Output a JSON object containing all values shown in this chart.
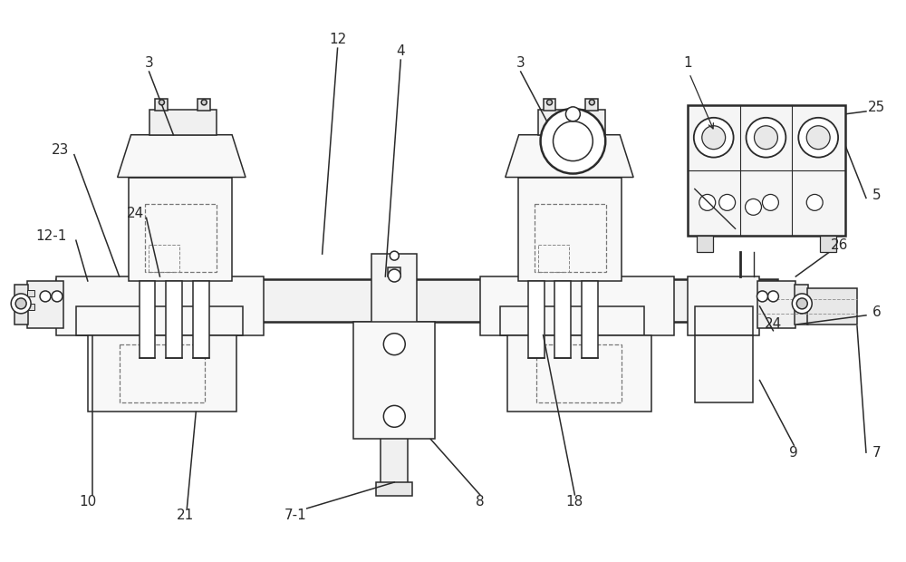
{
  "bg_color": "#ffffff",
  "lc": "#2a2a2a",
  "lw": 1.1,
  "tlw": 1.8,
  "dlw": 0.9,
  "fig_width": 10.0,
  "fig_height": 6.2,
  "dpi": 100
}
